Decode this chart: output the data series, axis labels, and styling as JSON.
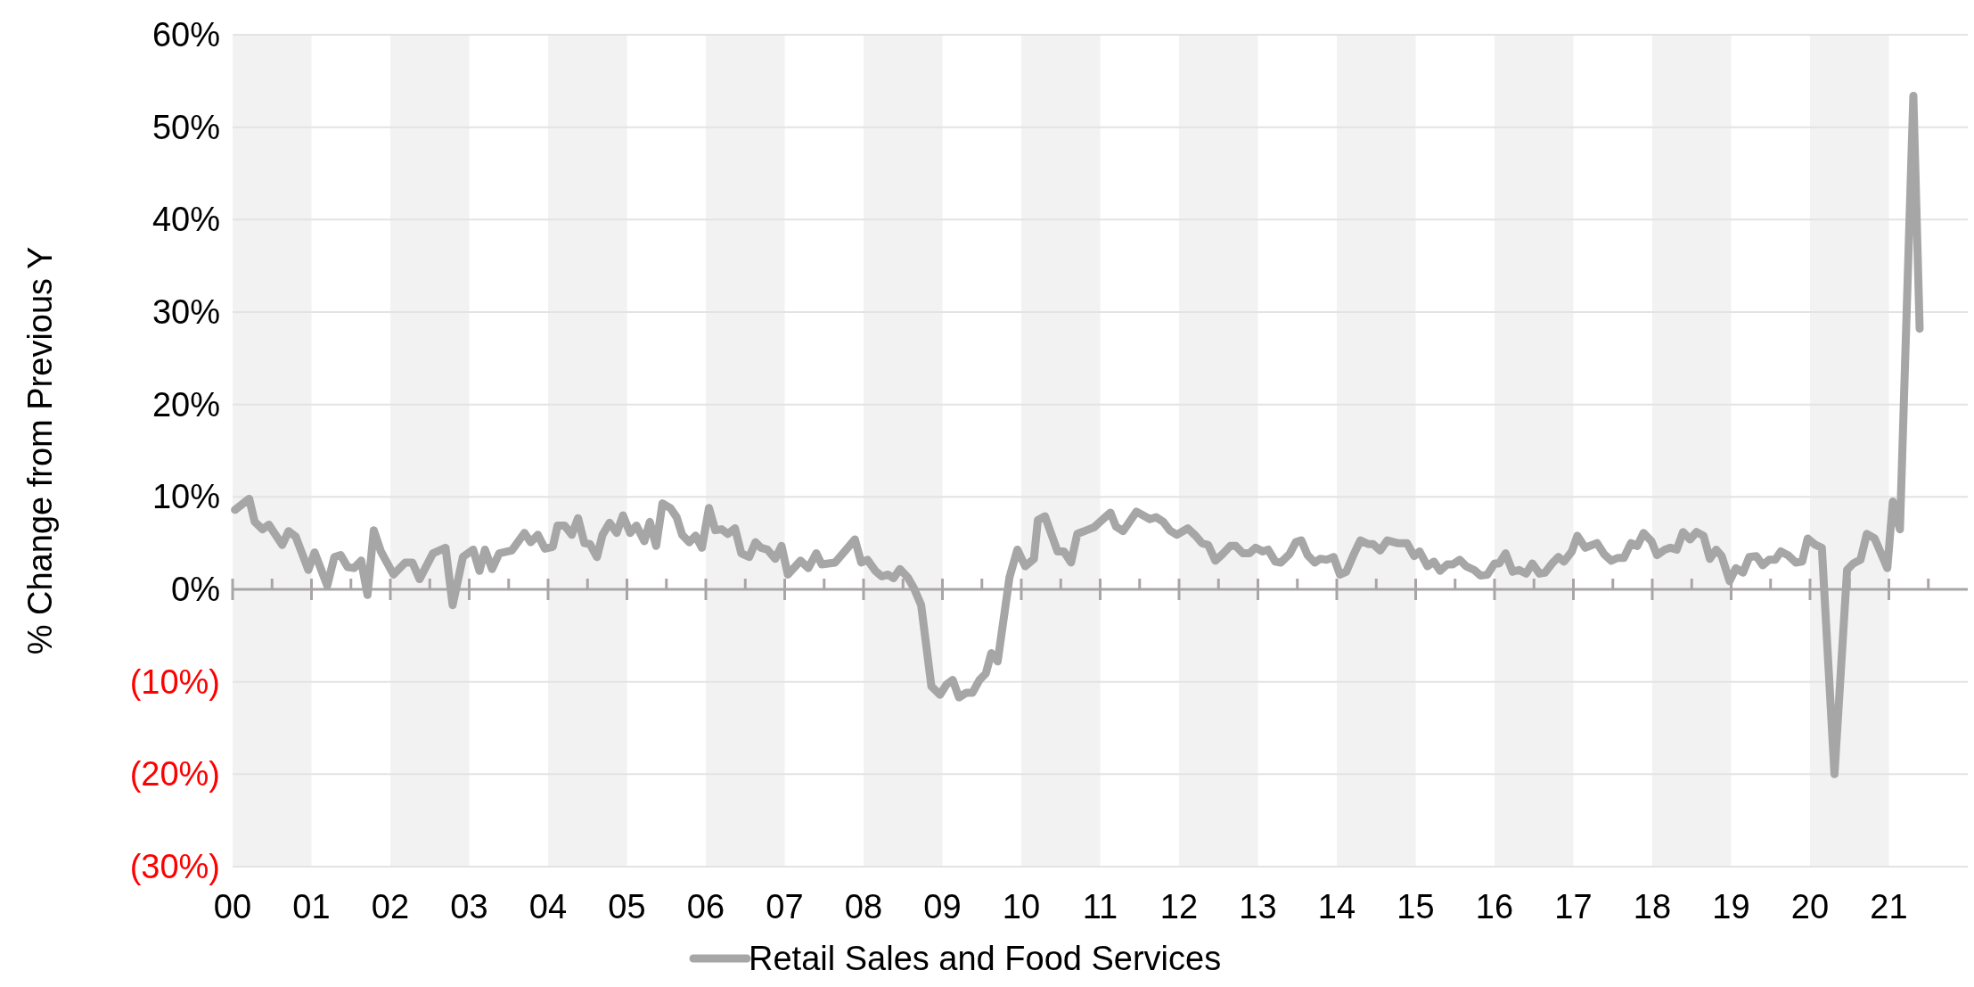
{
  "chart_data": {
    "type": "line",
    "ylabel": "% Change from Previous Y",
    "legend": "bottom",
    "grid": "y",
    "marker": "none",
    "line_style": "solid",
    "xlim": [
      2000,
      2022
    ],
    "xticks": [
      {
        "value": 2000,
        "label": "00"
      },
      {
        "value": 2000.5,
        "label": null
      },
      {
        "value": 2001,
        "label": "01"
      },
      {
        "value": 2001.5,
        "label": null
      },
      {
        "value": 2002,
        "label": "02"
      },
      {
        "value": 2002.5,
        "label": null
      },
      {
        "value": 2003,
        "label": "03"
      },
      {
        "value": 2003.5,
        "label": null
      },
      {
        "value": 2004,
        "label": "04"
      },
      {
        "value": 2004.5,
        "label": null
      },
      {
        "value": 2005,
        "label": "05"
      },
      {
        "value": 2005.5,
        "label": null
      },
      {
        "value": 2006,
        "label": "06"
      },
      {
        "value": 2006.5,
        "label": null
      },
      {
        "value": 2007,
        "label": "07"
      },
      {
        "value": 2007.5,
        "label": null
      },
      {
        "value": 2008,
        "label": "08"
      },
      {
        "value": 2008.5,
        "label": null
      },
      {
        "value": 2009,
        "label": "09"
      },
      {
        "value": 2009.5,
        "label": null
      },
      {
        "value": 2010,
        "label": "10"
      },
      {
        "value": 2010.5,
        "label": null
      },
      {
        "value": 2011,
        "label": "11"
      },
      {
        "value": 2011.5,
        "label": null
      },
      {
        "value": 2012,
        "label": "12"
      },
      {
        "value": 2012.5,
        "label": null
      },
      {
        "value": 2013,
        "label": "13"
      },
      {
        "value": 2013.5,
        "label": null
      },
      {
        "value": 2014,
        "label": "14"
      },
      {
        "value": 2014.5,
        "label": null
      },
      {
        "value": 2015,
        "label": "15"
      },
      {
        "value": 2015.5,
        "label": null
      },
      {
        "value": 2016,
        "label": "16"
      },
      {
        "value": 2016.5,
        "label": null
      },
      {
        "value": 2017,
        "label": "17"
      },
      {
        "value": 2017.5,
        "label": null
      },
      {
        "value": 2018,
        "label": "18"
      },
      {
        "value": 2018.5,
        "label": null
      },
      {
        "value": 2019,
        "label": "19"
      },
      {
        "value": 2019.5,
        "label": null
      },
      {
        "value": 2020,
        "label": "20"
      },
      {
        "value": 2020.5,
        "label": null
      },
      {
        "value": 2021,
        "label": "21"
      },
      {
        "value": 2021.5,
        "label": null
      }
    ],
    "ylim": [
      -30,
      60
    ],
    "yticks": [
      {
        "value": -30,
        "label": "(30%)"
      },
      {
        "value": -20,
        "label": "(20%)"
      },
      {
        "value": -10,
        "label": "(10%)"
      },
      {
        "value": 0,
        "label": "0%"
      },
      {
        "value": 10,
        "label": "10%"
      },
      {
        "value": 20,
        "label": "20%"
      },
      {
        "value": 30,
        "label": "30%"
      },
      {
        "value": 40,
        "label": "40%"
      },
      {
        "value": 50,
        "label": "50%"
      },
      {
        "value": 60,
        "label": "60%"
      }
    ],
    "bands": [
      {
        "axis": "x",
        "from": 2000,
        "to": 2001,
        "color": "#f2f2f2"
      },
      {
        "axis": "x",
        "from": 2002,
        "to": 2003,
        "color": "#f2f2f2"
      },
      {
        "axis": "x",
        "from": 2004,
        "to": 2005,
        "color": "#f2f2f2"
      },
      {
        "axis": "x",
        "from": 2006,
        "to": 2007,
        "color": "#f2f2f2"
      },
      {
        "axis": "x",
        "from": 2008,
        "to": 2009,
        "color": "#f2f2f2"
      },
      {
        "axis": "x",
        "from": 2010,
        "to": 2011,
        "color": "#f2f2f2"
      },
      {
        "axis": "x",
        "from": 2012,
        "to": 2013,
        "color": "#f2f2f2"
      },
      {
        "axis": "x",
        "from": 2014,
        "to": 2015,
        "color": "#f2f2f2"
      },
      {
        "axis": "x",
        "from": 2016,
        "to": 2017,
        "color": "#f2f2f2"
      },
      {
        "axis": "x",
        "from": 2018,
        "to": 2019,
        "color": "#f2f2f2"
      },
      {
        "axis": "x",
        "from": 2020,
        "to": 2021,
        "color": "#f2f2f2"
      }
    ],
    "x": [
      2000.03,
      2000.21,
      2000.28,
      2000.38,
      2000.46,
      2000.63,
      2000.71,
      2000.8,
      2000.96,
      2001.04,
      2001.2,
      2001.29,
      2001.37,
      2001.46,
      2001.54,
      2001.63,
      2001.71,
      2001.79,
      2001.88,
      2002.04,
      2002.19,
      2002.28,
      2002.37,
      2002.54,
      2002.7,
      2002.79,
      2002.92,
      2003.05,
      2003.13,
      2003.2,
      2003.29,
      2003.38,
      2003.54,
      2003.7,
      2003.78,
      2003.87,
      2003.96,
      2004.06,
      2004.12,
      2004.21,
      2004.3,
      2004.38,
      2004.46,
      2004.53,
      2004.62,
      2004.69,
      2004.78,
      2004.87,
      2004.95,
      2005.04,
      2005.12,
      2005.22,
      2005.29,
      2005.37,
      2005.45,
      2005.55,
      2005.63,
      2005.7,
      2005.79,
      2005.87,
      2005.95,
      2006.04,
      2006.12,
      2006.2,
      2006.28,
      2006.37,
      2006.45,
      2006.55,
      2006.63,
      2006.7,
      2006.78,
      2006.88,
      2006.96,
      2007.04,
      2007.2,
      2007.3,
      2007.4,
      2007.47,
      2007.64,
      2007.89,
      2007.97,
      2008.05,
      2008.15,
      2008.23,
      2008.31,
      2008.38,
      2008.46,
      2008.56,
      2008.64,
      2008.73,
      2008.86,
      2008.97,
      2009.05,
      2009.13,
      2009.21,
      2009.3,
      2009.38,
      2009.47,
      2009.55,
      2009.62,
      2009.7,
      2009.85,
      2009.95,
      2010.05,
      2010.16,
      2010.21,
      2010.3,
      2010.46,
      2010.54,
      2010.63,
      2010.71,
      2010.83,
      2010.92,
      2011.05,
      2011.13,
      2011.2,
      2011.29,
      2011.46,
      2011.63,
      2011.71,
      2011.8,
      2011.88,
      2011.97,
      2012.11,
      2012.21,
      2012.29,
      2012.37,
      2012.46,
      2012.55,
      2012.65,
      2012.72,
      2012.81,
      2012.89,
      2012.97,
      2013.06,
      2013.13,
      2013.22,
      2013.29,
      2013.4,
      2013.48,
      2013.55,
      2013.63,
      2013.72,
      2013.79,
      2013.87,
      2013.96,
      2014.04,
      2014.12,
      2014.21,
      2014.3,
      2014.4,
      2014.46,
      2014.55,
      2014.64,
      2014.77,
      2014.89,
      2014.98,
      2015.05,
      2015.15,
      2015.23,
      2015.31,
      2015.4,
      2015.47,
      2015.56,
      2015.64,
      2015.74,
      2015.82,
      2015.91,
      2016.0,
      2016.06,
      2016.14,
      2016.23,
      2016.31,
      2016.4,
      2016.48,
      2016.57,
      2016.64,
      2016.73,
      2016.81,
      2016.88,
      2016.98,
      2017.05,
      2017.15,
      2017.3,
      2017.39,
      2017.48,
      2017.56,
      2017.64,
      2017.73,
      2017.81,
      2017.89,
      2017.99,
      2018.06,
      2018.16,
      2018.23,
      2018.31,
      2018.39,
      2018.48,
      2018.56,
      2018.65,
      2018.73,
      2018.81,
      2018.88,
      2018.98,
      2019.06,
      2019.15,
      2019.23,
      2019.32,
      2019.4,
      2019.48,
      2019.56,
      2019.63,
      2019.72,
      2019.82,
      2019.9,
      2019.97,
      2020.07,
      2020.15,
      2020.31,
      2020.47,
      2020.55,
      2020.64,
      2020.72,
      2020.82,
      2020.98,
      2021.05,
      2021.14,
      2021.31,
      2021.39
    ],
    "series": [
      {
        "name": "Retail Sales and Food Services",
        "color": "#a6a6a6",
        "values": [
          8.6,
          9.8,
          7.3,
          6.5,
          7.0,
          4.8,
          6.3,
          5.7,
          2.1,
          4.0,
          0.4,
          3.5,
          3.7,
          2.4,
          2.3,
          3.1,
          -0.6,
          6.4,
          4.1,
          1.6,
          2.9,
          2.9,
          1.1,
          3.9,
          4.5,
          -1.7,
          3.5,
          4.3,
          2.0,
          4.3,
          2.2,
          3.9,
          4.2,
          6.1,
          5.1,
          5.9,
          4.4,
          4.6,
          6.9,
          6.9,
          5.9,
          7.7,
          5.0,
          4.9,
          3.5,
          5.9,
          7.2,
          6.1,
          8.0,
          6.1,
          6.9,
          5.2,
          7.3,
          4.7,
          9.3,
          8.8,
          7.8,
          5.9,
          5.1,
          5.8,
          4.5,
          8.8,
          6.4,
          6.5,
          6.0,
          6.6,
          3.9,
          3.5,
          5.1,
          4.5,
          4.3,
          3.3,
          4.7,
          1.6,
          3.1,
          2.3,
          3.9,
          2.7,
          2.9,
          5.4,
          2.9,
          3.2,
          2.0,
          1.4,
          1.6,
          1.2,
          2.2,
          1.3,
          0.1,
          -1.7,
          -10.5,
          -11.4,
          -10.3,
          -9.8,
          -11.7,
          -11.2,
          -11.2,
          -9.8,
          -9.1,
          -6.9,
          -7.8,
          1.3,
          4.3,
          2.5,
          3.3,
          7.5,
          7.9,
          4.1,
          4.1,
          2.9,
          6.0,
          6.4,
          6.7,
          7.7,
          8.3,
          6.8,
          6.3,
          8.4,
          7.6,
          7.8,
          7.3,
          6.4,
          5.9,
          6.6,
          5.8,
          5.0,
          4.8,
          3.1,
          3.8,
          4.7,
          4.7,
          3.9,
          3.9,
          4.5,
          4.1,
          4.3,
          3.0,
          2.9,
          3.8,
          5.1,
          5.3,
          3.7,
          2.9,
          3.3,
          3.2,
          3.5,
          1.6,
          1.9,
          3.7,
          5.3,
          4.9,
          4.9,
          4.2,
          5.3,
          5.0,
          5.0,
          3.6,
          4.1,
          2.5,
          3.0,
          2.0,
          2.7,
          2.7,
          3.2,
          2.5,
          2.1,
          1.5,
          1.6,
          2.8,
          2.8,
          3.9,
          1.9,
          2.1,
          1.7,
          2.8,
          1.7,
          1.8,
          2.8,
          3.5,
          3.0,
          4.1,
          5.8,
          4.5,
          5.0,
          3.8,
          3.1,
          3.4,
          3.4,
          5.0,
          4.7,
          6.1,
          5.2,
          3.7,
          4.3,
          4.5,
          4.3,
          6.2,
          5.4,
          6.2,
          5.8,
          3.3,
          4.3,
          3.6,
          0.9,
          2.3,
          1.8,
          3.5,
          3.6,
          2.6,
          3.2,
          3.2,
          4.1,
          3.7,
          2.9,
          3.0,
          5.5,
          4.8,
          4.5,
          -20.0,
          2.1,
          2.8,
          3.2,
          6.0,
          5.5,
          2.3,
          9.5,
          6.5,
          53.4,
          28.2
        ]
      }
    ]
  }
}
